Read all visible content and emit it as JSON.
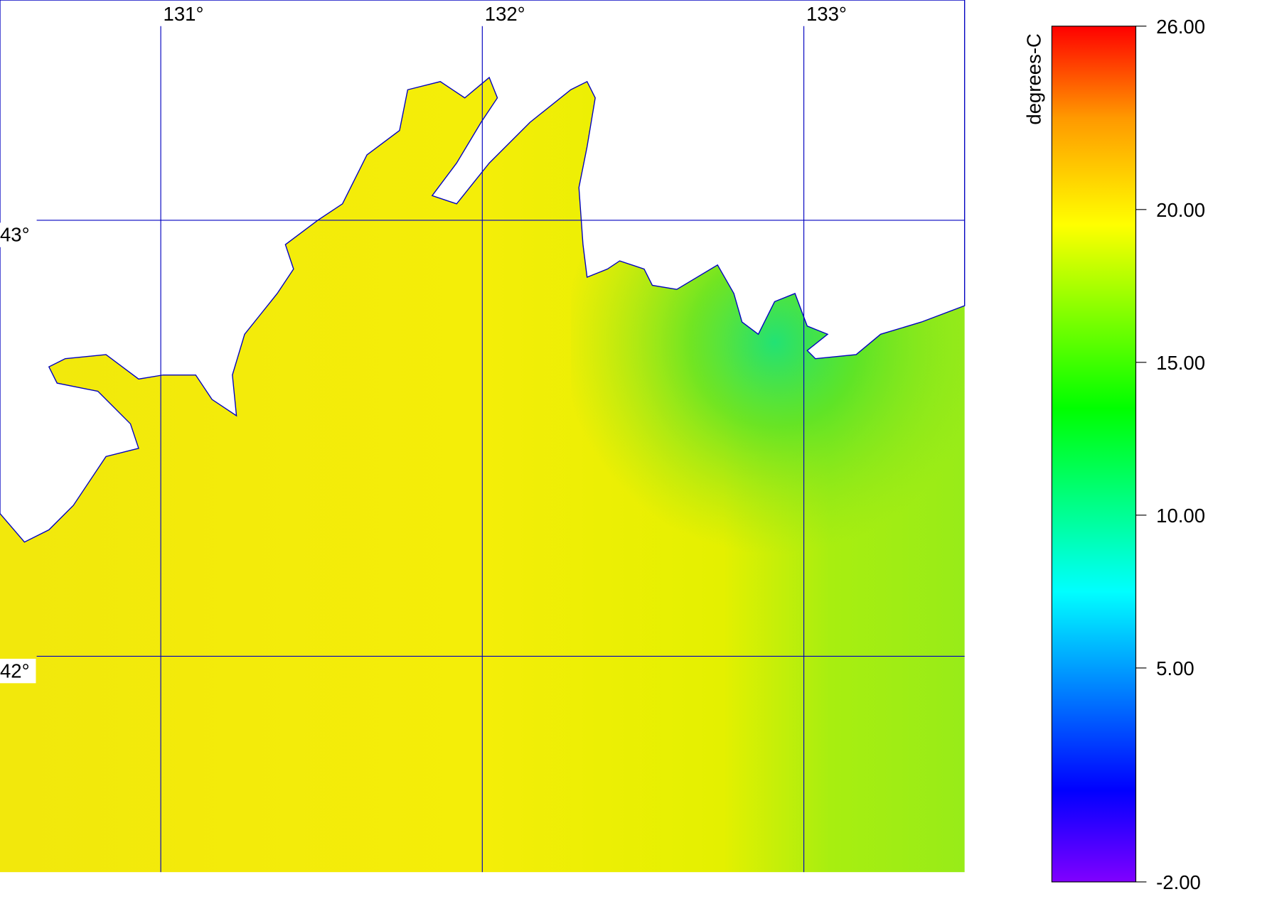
{
  "map": {
    "lonlim": [
      130.5,
      133.5
    ],
    "latlim": [
      41.505,
      43.505
    ],
    "lonticks": [
      {
        "value": 131,
        "label": "131°"
      },
      {
        "value": 132,
        "label": "132°"
      },
      {
        "value": 133,
        "label": "133°"
      }
    ],
    "latticks": [
      {
        "value": 43,
        "label": "43°"
      },
      {
        "value": 42,
        "label": "42°"
      }
    ],
    "grid_color": "#0000c0"
  },
  "colorbar": {
    "label": "degrees-C",
    "lim": [
      -2,
      26
    ],
    "ticks": [
      {
        "value": 26,
        "label": "26.00"
      },
      {
        "value": 20,
        "label": "20.00"
      },
      {
        "value": 15,
        "label": "15.00"
      },
      {
        "value": 10,
        "label": "10.00"
      },
      {
        "value": 5,
        "label": "5.00"
      },
      {
        "value": -2,
        "label": "-2.00"
      }
    ],
    "colormap": [
      {
        "value": -2,
        "color": "#8000ff"
      },
      {
        "value": 1,
        "color": "#0000ff"
      },
      {
        "value": 7.5,
        "color": "#00ffff"
      },
      {
        "value": 13.5,
        "color": "#00ff00"
      },
      {
        "value": 19.5,
        "color": "#ffff00"
      },
      {
        "value": 23,
        "color": "#ff9900"
      },
      {
        "value": 26,
        "color": "#ff0000"
      }
    ]
  }
}
